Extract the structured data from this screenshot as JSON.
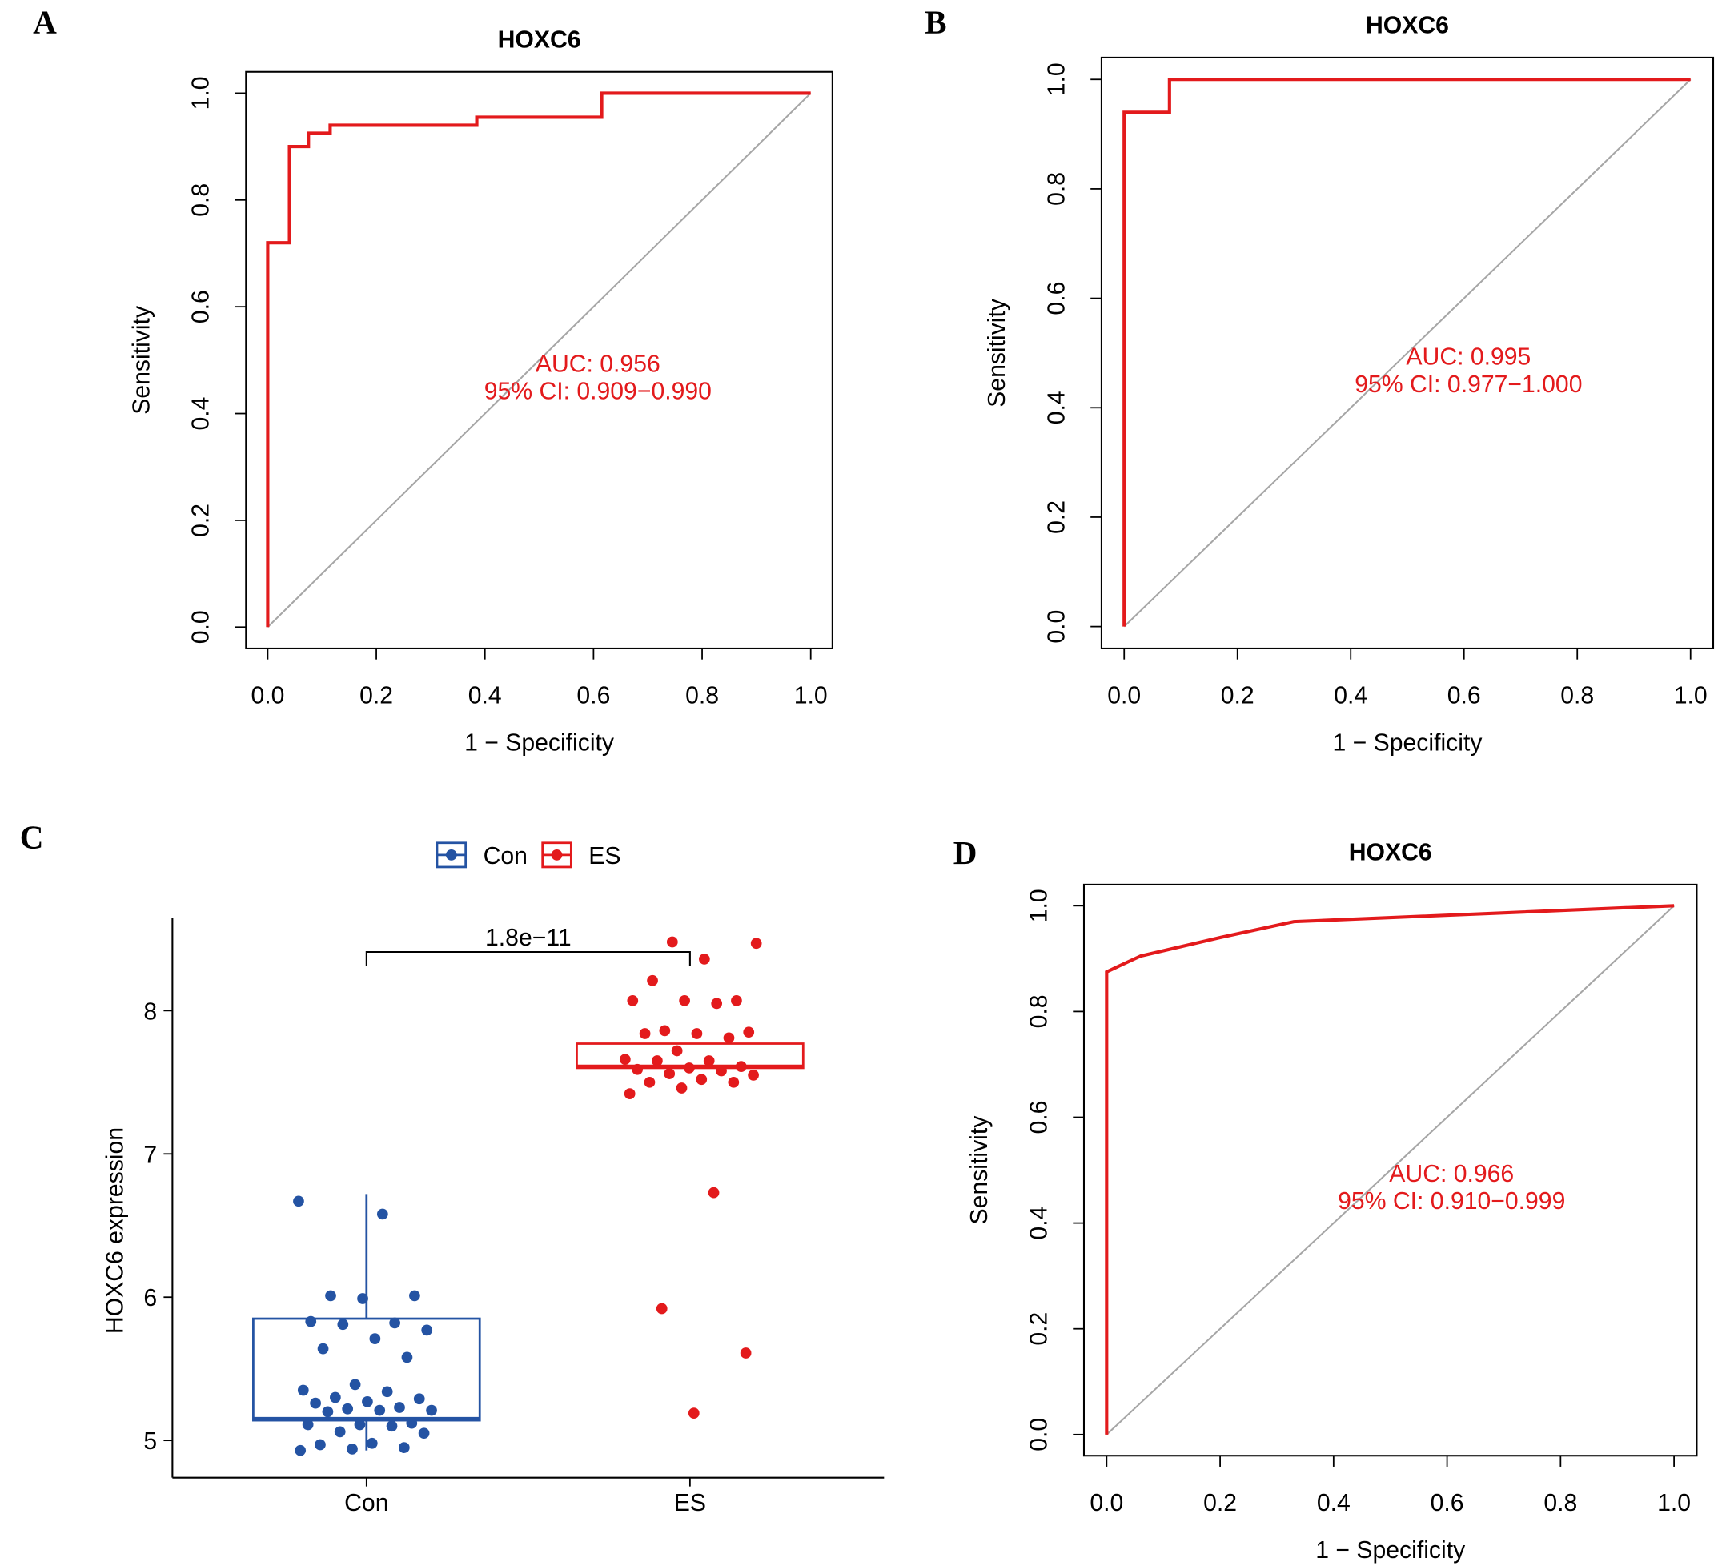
{
  "chart_data": [
    {
      "type": "roc",
      "panel": "A",
      "title": "HOXC6",
      "x_label": "1 − Specificity",
      "y_label": "Sensitivity",
      "annotations": [
        "AUC: 0.956",
        "95% CI: 0.909−0.990"
      ],
      "color": "#e31a1c",
      "x": [
        0,
        0,
        0.04,
        0.04,
        0.075,
        0.075,
        0.115,
        0.115,
        0.385,
        0.385,
        0.615,
        0.615,
        1
      ],
      "values": [
        0,
        0.72,
        0.72,
        0.9,
        0.9,
        0.925,
        0.925,
        0.94,
        0.94,
        0.955,
        0.955,
        1,
        1
      ],
      "xlim": [
        -0.04,
        1.04
      ],
      "ylim": [
        -0.04,
        1.04
      ],
      "xticks": [
        {
          "value": 0,
          "label": "0.0"
        },
        0.2,
        0.4,
        0.6,
        0.8,
        {
          "value": 1,
          "label": "1.0"
        }
      ],
      "yticks": [
        {
          "value": 0,
          "label": "0.0"
        },
        0.2,
        0.4,
        0.6,
        0.8,
        {
          "value": 1,
          "label": "1.0"
        }
      ]
    },
    {
      "type": "roc",
      "panel": "B",
      "title": "HOXC6",
      "x_label": "1 − Specificity",
      "y_label": "Sensitivity",
      "annotations": [
        "AUC: 0.995",
        "95% CI: 0.977−1.000"
      ],
      "color": "#e31a1c",
      "x": [
        0,
        0,
        0.08,
        0.08,
        1
      ],
      "values": [
        0,
        0.94,
        0.94,
        1,
        1
      ],
      "xlim": [
        -0.04,
        1.04
      ],
      "ylim": [
        -0.04,
        1.04
      ],
      "xticks": [
        {
          "value": 0,
          "label": "0.0"
        },
        0.2,
        0.4,
        0.6,
        0.8,
        {
          "value": 1,
          "label": "1.0"
        }
      ],
      "yticks": [
        {
          "value": 0,
          "label": "0.0"
        },
        0.2,
        0.4,
        0.6,
        0.8,
        {
          "value": 1,
          "label": "1.0"
        }
      ]
    },
    {
      "type": "box",
      "panel": "C",
      "y_label": "HOXC6 expression",
      "categories": [
        "Con",
        "ES"
      ],
      "comparison": {
        "label": "1.8e−11",
        "y": 8.41,
        "tip": 8.31
      },
      "ylim": [
        4.74,
        8.65
      ],
      "yticks": [
        5,
        6,
        7,
        8
      ],
      "xlim": [
        0.4,
        2.6
      ],
      "series": [
        {
          "name": "Con",
          "color": "#2453a3",
          "q1": 5.14,
          "median": 5.15,
          "q3": 5.85,
          "whiskers": [
            4.93,
            6.72
          ],
          "points": [
            6.67,
            6.58,
            6.01,
            6.01,
            5.99,
            5.83,
            5.82,
            5.81,
            5.77,
            5.71,
            5.64,
            5.58,
            5.39,
            5.35,
            5.34,
            5.3,
            5.29,
            5.27,
            5.26,
            5.23,
            5.22,
            5.21,
            5.21,
            5.2,
            5.12,
            5.11,
            5.11,
            5.1,
            5.06,
            5.05,
            4.98,
            4.97,
            4.95,
            4.94,
            4.93
          ]
        },
        {
          "name": "ES",
          "color": "#e31a1c",
          "q1": 7.6,
          "median": 7.61,
          "q3": 7.77,
          "whiskers": [
            7.6,
            7.77
          ],
          "points": [
            8.48,
            8.47,
            8.36,
            8.21,
            8.07,
            8.07,
            8.07,
            8.05,
            7.86,
            7.85,
            7.84,
            7.84,
            7.81,
            7.72,
            7.66,
            7.65,
            7.65,
            7.61,
            7.6,
            7.59,
            7.58,
            7.56,
            7.55,
            7.52,
            7.5,
            7.5,
            7.46,
            7.42,
            6.73,
            5.92,
            5.61,
            5.19
          ]
        }
      ]
    },
    {
      "type": "roc",
      "panel": "D",
      "title": "HOXC6",
      "x_label": "1 − Specificity",
      "y_label": "Sensitivity",
      "annotations": [
        "AUC: 0.966",
        "95% CI: 0.910−0.999"
      ],
      "color": "#e31a1c",
      "x": [
        0,
        0,
        0.06,
        0.2,
        0.33,
        1
      ],
      "values": [
        0,
        0.875,
        0.905,
        0.94,
        0.97,
        1
      ],
      "xlim": [
        -0.04,
        1.04
      ],
      "ylim": [
        -0.04,
        1.04
      ],
      "xticks": [
        {
          "value": 0,
          "label": "0.0"
        },
        0.2,
        0.4,
        0.6,
        0.8,
        {
          "value": 1,
          "label": "1.0"
        }
      ],
      "yticks": [
        {
          "value": 0,
          "label": "0.0"
        },
        0.2,
        0.4,
        0.6,
        0.8,
        {
          "value": 1,
          "label": "1.0"
        }
      ]
    }
  ]
}
